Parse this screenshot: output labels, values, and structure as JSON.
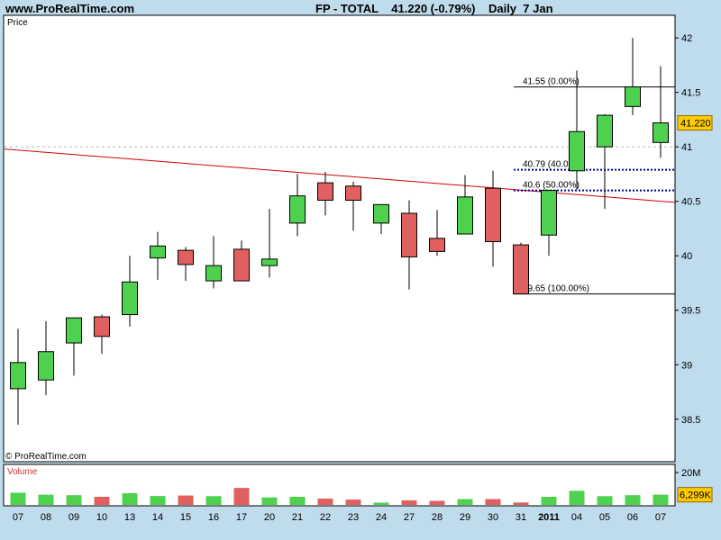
{
  "header": {
    "site": "www.ProRealTime.com",
    "instrument": "FP - TOTAL",
    "last": "41.220 (-0.79%)",
    "period": "Daily  7 Jan"
  },
  "price_panel": {
    "label": "Price",
    "copyright": "© ProRealTime.com",
    "last_label": "41.220"
  },
  "volume_panel": {
    "label": "Volume",
    "tick_label": "20M",
    "last_label": "6,299K"
  },
  "colors": {
    "up": "#4ed14e",
    "down": "#e06060",
    "trend": "#d00000",
    "fib": "#000099",
    "background": "#bfdcec"
  },
  "chart_data": [
    {
      "type": "candlestick",
      "title": "FP - TOTAL",
      "ylabel": "Price",
      "ylim": [
        38.3,
        42.1
      ],
      "yticks": [
        38.5,
        39,
        39.5,
        40,
        40.5,
        41,
        41.5,
        42
      ],
      "categories": [
        "07",
        "08",
        "09",
        "10",
        "13",
        "14",
        "15",
        "16",
        "17",
        "20",
        "21",
        "22",
        "23",
        "24",
        "27",
        "28",
        "29",
        "30",
        "31",
        "2011",
        "04",
        "05",
        "06",
        "07"
      ],
      "open": [
        38.78,
        38.86,
        39.2,
        39.44,
        39.46,
        39.98,
        40.05,
        39.77,
        40.06,
        39.91,
        40.3,
        40.67,
        40.64,
        40.3,
        40.39,
        40.16,
        40.2,
        40.62,
        40.1,
        40.19,
        40.78,
        41.0,
        41.37,
        41.04
      ],
      "high": [
        39.33,
        39.4,
        39.43,
        39.46,
        40.0,
        40.22,
        40.08,
        40.18,
        40.14,
        40.43,
        40.75,
        40.77,
        40.68,
        40.47,
        40.51,
        40.42,
        40.74,
        40.78,
        40.12,
        40.58,
        41.7,
        41.3,
        42.0,
        41.74
      ],
      "low": [
        38.45,
        38.72,
        38.9,
        39.1,
        39.35,
        39.78,
        39.77,
        39.7,
        39.77,
        39.8,
        40.18,
        40.37,
        40.23,
        40.2,
        39.69,
        40.0,
        40.2,
        39.9,
        39.65,
        40.0,
        40.61,
        40.43,
        41.29,
        40.9
      ],
      "close": [
        39.02,
        39.12,
        39.43,
        39.26,
        39.76,
        40.09,
        39.92,
        39.91,
        39.77,
        39.97,
        40.55,
        40.51,
        40.51,
        40.47,
        39.99,
        40.04,
        40.54,
        40.13,
        39.65,
        40.6,
        41.14,
        41.29,
        41.55,
        41.22
      ],
      "last": 41.22,
      "reference_line": 41.0,
      "trendline": {
        "start": {
          "x": "07",
          "y": 40.98
        },
        "end": {
          "x": "07",
          "y": 40.49
        },
        "span": "first to last session"
      },
      "fibonacci": [
        {
          "label": "41.55 (0.00%)",
          "value": 41.55,
          "style": "solid"
        },
        {
          "label": "40.79 (40.00%)",
          "value": 40.79,
          "style": "dotted"
        },
        {
          "label": "40.6 (50.00%)",
          "value": 40.6,
          "style": "dotted"
        },
        {
          "label": "39.65 (100.00%)",
          "value": 39.65,
          "style": "solid"
        }
      ]
    },
    {
      "type": "bar",
      "ylabel": "Volume",
      "unit": "shares",
      "ylim": [
        0,
        25000000
      ],
      "yticks": [
        20000000
      ],
      "categories": [
        "07",
        "08",
        "09",
        "10",
        "13",
        "14",
        "15",
        "16",
        "17",
        "20",
        "21",
        "22",
        "23",
        "24",
        "27",
        "28",
        "29",
        "30",
        "31",
        "2011",
        "04",
        "05",
        "06",
        "07"
      ],
      "values": [
        7500000,
        6300000,
        6000000,
        5000000,
        7200000,
        5500000,
        5800000,
        5400000,
        10500000,
        4600000,
        5000000,
        3900000,
        3300000,
        1400000,
        2800000,
        2500000,
        3600000,
        3600000,
        1500000,
        5000000,
        8700000,
        5400000,
        6000000,
        6299000
      ],
      "last_label": "6,299K"
    }
  ],
  "axis": {
    "x_labels": [
      "07",
      "08",
      "09",
      "10",
      "13",
      "14",
      "15",
      "16",
      "17",
      "20",
      "21",
      "22",
      "23",
      "24",
      "27",
      "28",
      "29",
      "30",
      "31",
      "2011",
      "04",
      "05",
      "06",
      "07"
    ],
    "bold_label": "2011"
  }
}
